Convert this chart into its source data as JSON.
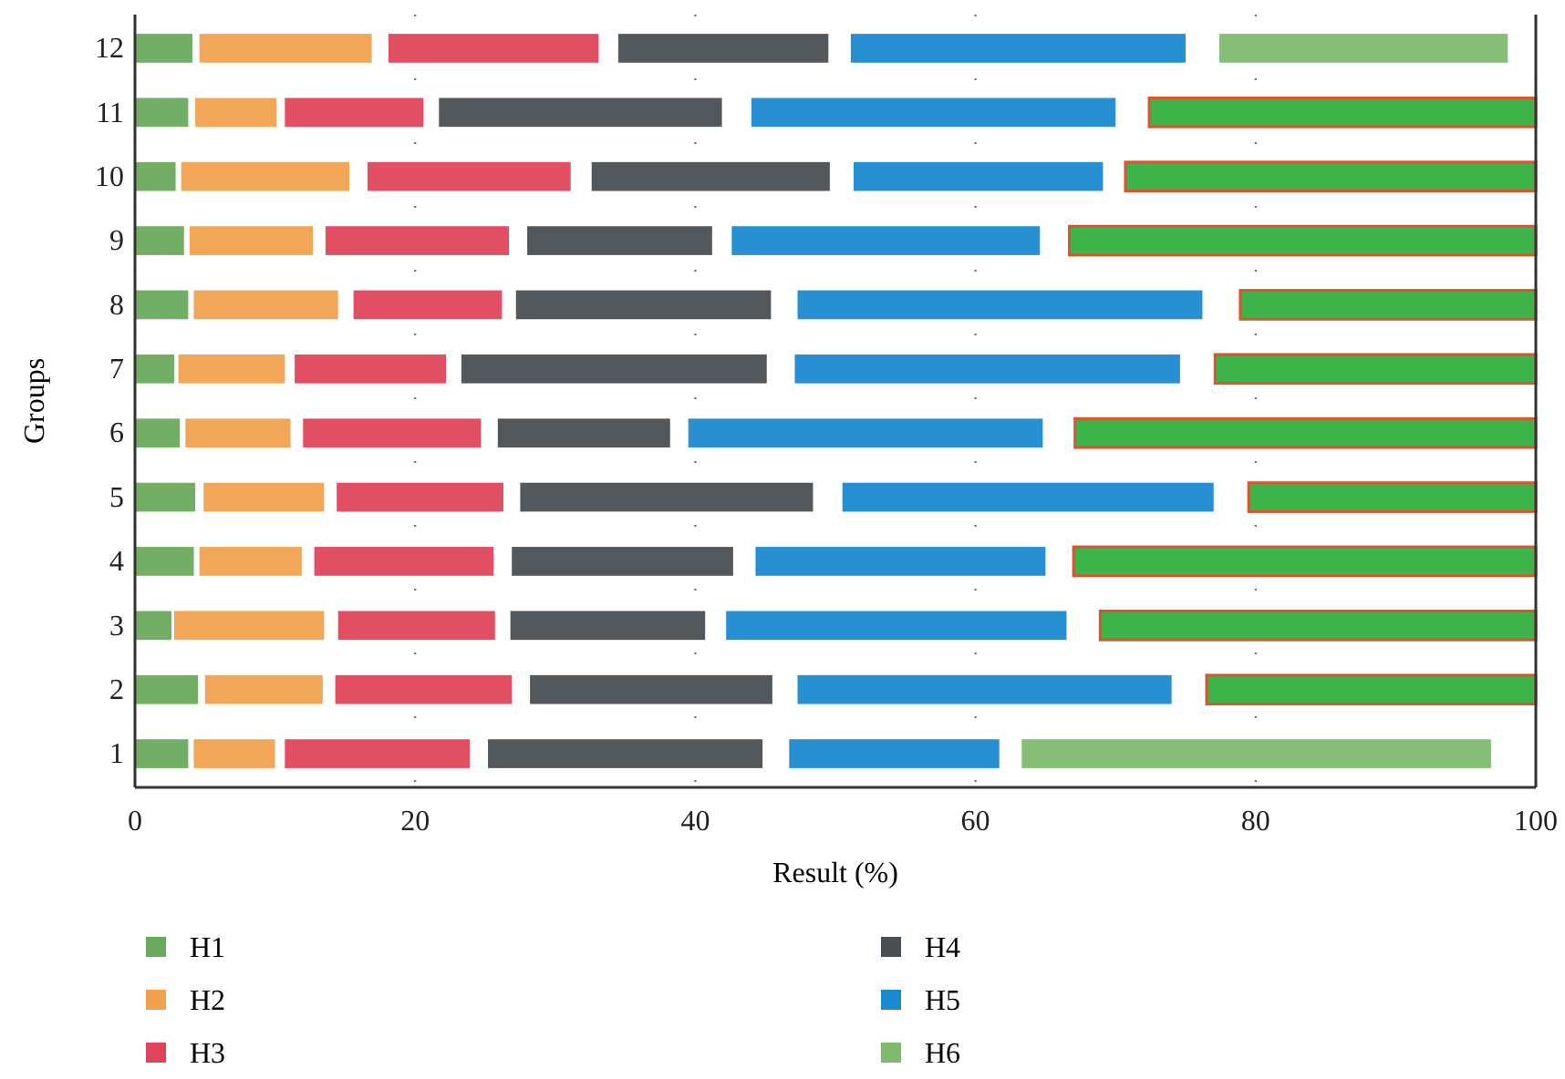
{
  "chart_data": {
    "type": "bar",
    "orientation": "horizontal",
    "xlabel": "Result (%)",
    "ylabel": "Groups",
    "categories": [
      "12",
      "11",
      "10",
      "9",
      "8",
      "7",
      "6",
      "5",
      "4",
      "3",
      "2",
      "1"
    ],
    "xlim": [
      0,
      100
    ],
    "xticks": [
      0,
      20,
      40,
      60,
      80,
      100
    ],
    "grid": "x",
    "legend": "bottom",
    "series": [
      {
        "name": "H1",
        "color": "#6aaa5c",
        "base": [
          0,
          0,
          0,
          0,
          0,
          0,
          0,
          0,
          0,
          0,
          0,
          0
        ],
        "values": [
          4.1,
          3.8,
          2.9,
          3.5,
          3.8,
          2.8,
          3.2,
          4.3,
          4.2,
          2.6,
          4.5,
          3.8
        ]
      },
      {
        "name": "H2",
        "color": "#f0a24e",
        "base": [
          4.6,
          4.3,
          3.3,
          3.9,
          4.2,
          3.1,
          3.6,
          4.9,
          4.6,
          2.8,
          5.0,
          4.2
        ],
        "values": [
          12.3,
          5.8,
          12.0,
          8.8,
          10.3,
          7.6,
          7.5,
          8.6,
          7.3,
          10.7,
          8.4,
          5.8
        ]
      },
      {
        "name": "H3",
        "color": "#e0445a",
        "base": [
          18.1,
          10.7,
          16.6,
          13.6,
          15.6,
          11.4,
          12.0,
          14.4,
          12.8,
          14.5,
          14.3,
          10.7
        ],
        "values": [
          15.0,
          9.9,
          14.5,
          13.1,
          10.6,
          10.8,
          12.7,
          11.9,
          12.8,
          11.2,
          12.6,
          13.2
        ]
      },
      {
        "name": "H4",
        "color": "#4a4f53",
        "base": [
          34.5,
          21.7,
          32.6,
          28.0,
          27.2,
          23.3,
          25.9,
          27.5,
          26.9,
          26.8,
          28.2,
          25.2
        ],
        "values": [
          15.0,
          20.2,
          17.0,
          13.2,
          18.2,
          21.8,
          12.3,
          20.9,
          15.8,
          13.9,
          17.3,
          19.6
        ]
      },
      {
        "name": "H5",
        "color": "#1a8ad0",
        "base": [
          51.1,
          44.0,
          51.3,
          42.6,
          47.3,
          47.1,
          39.5,
          50.5,
          44.3,
          42.2,
          47.3,
          46.7
        ],
        "values": [
          23.9,
          26.0,
          17.8,
          22.0,
          28.9,
          27.5,
          25.3,
          26.5,
          20.7,
          24.3,
          26.7,
          15.0
        ]
      },
      {
        "name": "H6",
        "color": "#7fbb6e",
        "colors": [
          "#7fbb6e",
          "#3cb44a",
          "#3cb44a",
          "#3cb44a",
          "#3cb44a",
          "#3cb44a",
          "#3cb44a",
          "#3cb44a",
          "#3cb44a",
          "#3cb44a",
          "#3cb44a",
          "#7fbb6e"
        ],
        "base": [
          77.4,
          72.4,
          70.7,
          66.7,
          78.9,
          77.1,
          67.1,
          79.5,
          67.0,
          68.9,
          76.5,
          63.3
        ],
        "values": [
          20.6,
          27.6,
          29.3,
          33.3,
          21.1,
          22.9,
          32.9,
          20.5,
          33.0,
          31.1,
          23.5,
          33.5
        ]
      }
    ]
  }
}
